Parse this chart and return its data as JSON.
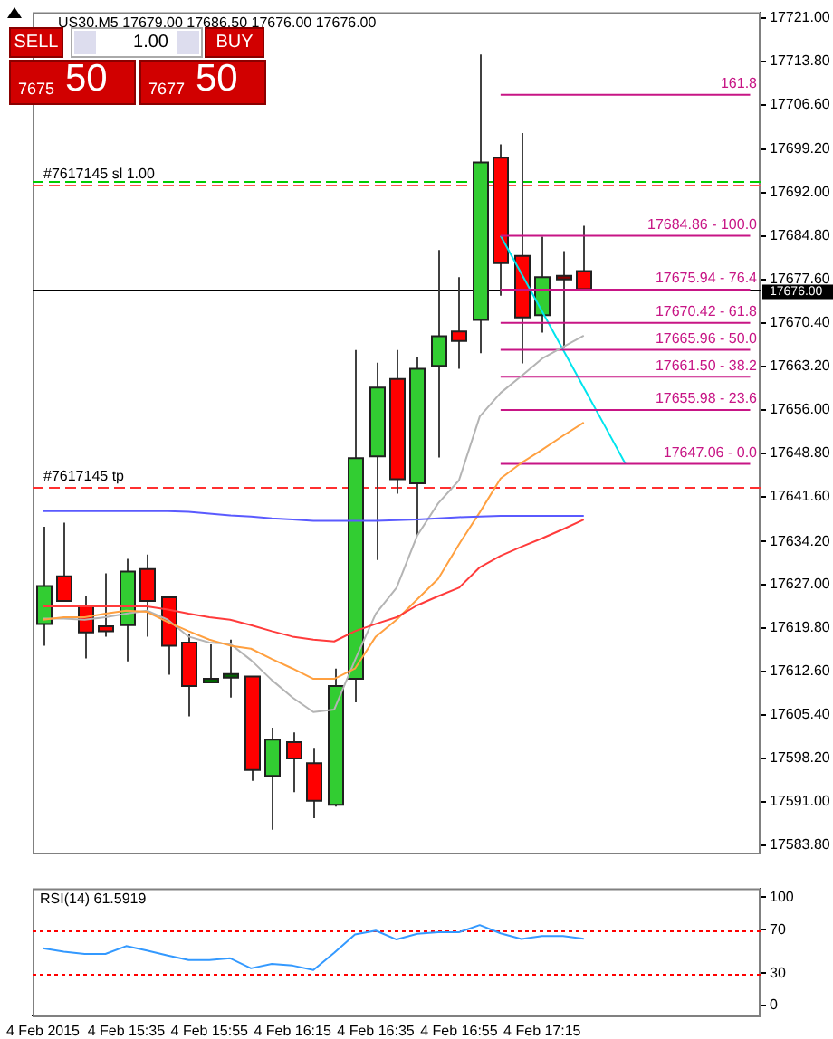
{
  "chart_data": [
    {
      "type": "candlestick",
      "title": "US30,M5 17679.00 17686.50 17676.00 17676.00",
      "categories": [
        null,
        null,
        null,
        null,
        null,
        null,
        null,
        null,
        null,
        null,
        null,
        null,
        null,
        null,
        null,
        null,
        null,
        null,
        null,
        null,
        null,
        null,
        null,
        null,
        null,
        null,
        null,
        null,
        null,
        null,
        null,
        null,
        null,
        null,
        null
      ],
      "ohlc": [
        [
          17620.5,
          17636.6,
          17616.9,
          17626.8
        ],
        [
          17628.4,
          17637.3,
          17624.3,
          17624.3
        ],
        [
          17623.4,
          17625.1,
          17614.8,
          17619.1
        ],
        [
          17620.1,
          17628.9,
          17618.4,
          17619.3
        ],
        [
          17620.3,
          17631.3,
          17614.3,
          17629.2
        ],
        [
          17629.6,
          17632.0,
          17618.4,
          17624.3
        ],
        [
          17624.9,
          17624.9,
          17612.1,
          17616.9
        ],
        [
          17617.4,
          17618.9,
          17605.2,
          17610.2
        ],
        [
          17611.0,
          17617.1,
          17611.0,
          17611.4
        ],
        [
          17611.7,
          17617.9,
          17608.3,
          17612.2
        ],
        [
          17611.8,
          17611.8,
          17594.5,
          17596.3
        ],
        [
          17595.3,
          17603.3,
          17586.4,
          17601.3
        ],
        [
          17600.9,
          17602.5,
          17592.6,
          17598.2
        ],
        [
          17597.4,
          17599.8,
          17588.3,
          17591.2
        ],
        [
          17590.5,
          17613.1,
          17590.2,
          17610.2
        ],
        [
          17611.4,
          17665.9,
          17607.5,
          17648.0
        ],
        [
          17648.3,
          17663.8,
          17631.1,
          17659.7
        ],
        [
          17661.1,
          17665.9,
          17642.1,
          17644.5
        ],
        [
          17643.8,
          17664.8,
          17635.2,
          17662.8
        ],
        [
          17663.3,
          17682.5,
          17648.1,
          17668.2
        ],
        [
          17669.0,
          17678.0,
          17662.8,
          17667.4
        ],
        [
          17670.9,
          17714.9,
          17665.4,
          17697.0
        ],
        [
          17697.8,
          17700.0,
          17674.9,
          17680.3
        ],
        [
          17681.5,
          17701.9,
          17663.7,
          17671.3
        ],
        [
          17671.7,
          17684.7,
          17668.8,
          17678.0
        ],
        [
          17678.2,
          17682.3,
          17666.4,
          17677.9
        ],
        [
          17679,
          17686.5,
          17676,
          17676
        ],
        null,
        null,
        null,
        null,
        null,
        null,
        null,
        null
      ],
      "colors": [
        "#32cd32",
        "#ff0000",
        "#ff0000",
        "#ff0000",
        "#32cd32",
        "#ff0000",
        "#ff0000",
        "#ff0000",
        "#006400",
        "#006400",
        "#ff0000",
        "#32cd32",
        "#ff0000",
        "#ff0000",
        "#32cd32",
        "#32cd32",
        "#32cd32",
        "#ff0000",
        "#32cd32",
        "#32cd32",
        "#ff0000",
        "#32cd32",
        "#ff0000",
        "#ff0000",
        "#32cd32",
        "#8b0000",
        "#ff0000",
        null,
        null,
        null,
        null,
        null,
        null,
        null,
        null
      ],
      "series": [
        {
          "type": "line",
          "color": "#5a5aff",
          "values": [
            17639.2,
            17639.2,
            17639.2,
            17639.2,
            17639.2,
            17639.2,
            17639.2,
            17639.1,
            17638.8,
            17638.5,
            17638.3,
            17638.0,
            17637.8,
            17637.6,
            17637.6,
            17637.6,
            17637.6,
            17637.7,
            17637.8,
            17638.0,
            17638.2,
            17638.3,
            17638.4,
            17638.4,
            17638.4,
            17638.4,
            17638.4,
            null,
            null,
            null,
            null,
            null,
            null,
            null,
            null
          ]
        },
        {
          "type": "line",
          "color": "#ff3b3b",
          "values": [
            17623.4,
            17623.4,
            17623.4,
            17623.4,
            17623.4,
            17623.4,
            17622.9,
            17622.2,
            17621.6,
            17621.2,
            17620.3,
            17619.3,
            17618.4,
            17617.9,
            17617.6,
            17619.3,
            17620.5,
            17621.6,
            17623.6,
            17625.1,
            17626.5,
            17629.9,
            17631.8,
            17633.3,
            17634.7,
            17636.2,
            17637.8,
            null,
            null,
            null,
            null,
            null,
            null,
            null,
            null
          ]
        },
        {
          "type": "line",
          "color": "#ffa040",
          "values": [
            17621.2,
            17621.6,
            17621.6,
            17622.2,
            17622.7,
            17622.5,
            17620.8,
            17619.3,
            17617.9,
            17616.9,
            17616.4,
            17614.7,
            17613.1,
            17611.4,
            17611.4,
            17613.1,
            17618.4,
            17621.2,
            17624.6,
            17628.0,
            17633.7,
            17639.0,
            17644.6,
            17647.2,
            17649.4,
            17651.7,
            17653.9,
            null,
            null,
            null,
            null,
            null,
            null,
            null,
            null
          ]
        },
        {
          "type": "line",
          "color": "#b4b4b4",
          "values": [
            17621.4,
            17621.4,
            17621.2,
            17621.6,
            17622.2,
            17622.7,
            17621.2,
            17618.4,
            17617.4,
            17617.2,
            17614.5,
            17611.2,
            17608.3,
            17605.9,
            17606.3,
            17614.5,
            17622.2,
            17626.5,
            17635.2,
            17640.5,
            17644.3,
            17654.9,
            17658.8,
            17661.6,
            17664.5,
            17666.4,
            17668.3,
            null,
            null,
            null,
            null,
            null,
            null,
            null,
            null
          ]
        },
        {
          "type": "line",
          "name": "161.8",
          "color": "#c71585",
          "values": [
            null,
            null,
            null,
            null,
            null,
            null,
            null,
            null,
            null,
            null,
            null,
            null,
            null,
            null,
            null,
            null,
            null,
            null,
            null,
            null,
            null,
            null,
            17708.22,
            17708.22,
            17708.22,
            17708.22,
            17708.22,
            17708.22,
            17708.22,
            17708.22,
            17708.22,
            17708.22,
            17708.22,
            17708.22,
            17708.22
          ]
        },
        {
          "type": "line",
          "name": "17684.86 - 100.0",
          "color": "#c71585",
          "values": [
            null,
            null,
            null,
            null,
            null,
            null,
            null,
            null,
            null,
            null,
            null,
            null,
            null,
            null,
            null,
            null,
            null,
            null,
            null,
            null,
            null,
            null,
            17684.86,
            17684.86,
            17684.86,
            17684.86,
            17684.86,
            17684.86,
            17684.86,
            17684.86,
            17684.86,
            17684.86,
            17684.86,
            17684.86,
            17684.86
          ]
        },
        {
          "type": "line",
          "name": "17675.94 - 76.4",
          "color": "#c71585",
          "values": [
            null,
            null,
            null,
            null,
            null,
            null,
            null,
            null,
            null,
            null,
            null,
            null,
            null,
            null,
            null,
            null,
            null,
            null,
            null,
            null,
            null,
            null,
            17675.94,
            17675.94,
            17675.94,
            17675.94,
            17675.94,
            17675.94,
            17675.94,
            17675.94,
            17675.94,
            17675.94,
            17675.94,
            17675.94,
            17675.94
          ]
        },
        {
          "type": "line",
          "name": "17670.42 - 61.8",
          "color": "#c71585",
          "values": [
            null,
            null,
            null,
            null,
            null,
            null,
            null,
            null,
            null,
            null,
            null,
            null,
            null,
            null,
            null,
            null,
            null,
            null,
            null,
            null,
            null,
            null,
            17670.42,
            17670.42,
            17670.42,
            17670.42,
            17670.42,
            17670.42,
            17670.42,
            17670.42,
            17670.42,
            17670.42,
            17670.42,
            17670.42,
            17670.42
          ]
        },
        {
          "type": "line",
          "name": "17665.96 - 50.0",
          "color": "#c71585",
          "values": [
            null,
            null,
            null,
            null,
            null,
            null,
            null,
            null,
            null,
            null,
            null,
            null,
            null,
            null,
            null,
            null,
            null,
            null,
            null,
            null,
            null,
            null,
            17665.96,
            17665.96,
            17665.96,
            17665.96,
            17665.96,
            17665.96,
            17665.96,
            17665.96,
            17665.96,
            17665.96,
            17665.96,
            17665.96,
            17665.96
          ]
        },
        {
          "type": "line",
          "name": "17661.50 - 38.2",
          "color": "#c71585",
          "values": [
            null,
            null,
            null,
            null,
            null,
            null,
            null,
            null,
            null,
            null,
            null,
            null,
            null,
            null,
            null,
            null,
            null,
            null,
            null,
            null,
            null,
            null,
            17661.5,
            17661.5,
            17661.5,
            17661.5,
            17661.5,
            17661.5,
            17661.5,
            17661.5,
            17661.5,
            17661.5,
            17661.5,
            17661.5,
            17661.5
          ]
        },
        {
          "type": "line",
          "name": "17655.98 - 23.6",
          "color": "#c71585",
          "values": [
            null,
            null,
            null,
            null,
            null,
            null,
            null,
            null,
            null,
            null,
            null,
            null,
            null,
            null,
            null,
            null,
            null,
            null,
            null,
            null,
            null,
            null,
            17655.98,
            17655.98,
            17655.98,
            17655.98,
            17655.98,
            17655.98,
            17655.98,
            17655.98,
            17655.98,
            17655.98,
            17655.98,
            17655.98,
            17655.98
          ]
        },
        {
          "type": "line",
          "name": "17647.06 - 0.0",
          "color": "#c71585",
          "values": [
            null,
            null,
            null,
            null,
            null,
            null,
            null,
            null,
            null,
            null,
            null,
            null,
            null,
            null,
            null,
            null,
            null,
            null,
            null,
            null,
            null,
            null,
            17647.06,
            17647.06,
            17647.06,
            17647.06,
            17647.06,
            17647.06,
            17647.06,
            17647.06,
            17647.06,
            17647.06,
            17647.06,
            17647.06,
            17647.06
          ]
        },
        {
          "type": "line",
          "color": "#00e5ee",
          "values": [
            null,
            null,
            null,
            null,
            null,
            null,
            null,
            null,
            null,
            null,
            null,
            null,
            null,
            null,
            null,
            null,
            null,
            null,
            null,
            null,
            null,
            null,
            17684.86,
            17678.6,
            17672.3,
            17666.0,
            17659.7,
            17653.4,
            17647.06,
            null,
            null,
            null,
            null,
            null,
            null
          ]
        }
      ],
      "ref_lines": [
        {
          "axis": "y",
          "value": 17694.0,
          "color": "#00cc00",
          "line_style": "dashed"
        },
        {
          "axis": "y",
          "value": 17693.4,
          "label": "#7617145 sl 1.00",
          "color": "#ff5050",
          "line_style": "dashed"
        },
        {
          "axis": "y",
          "value": 17643.3,
          "label": "#7617145 tp",
          "color": "#ff3030",
          "line_style": "dashed"
        },
        {
          "axis": "y",
          "value": 17676.0,
          "label": "17676.00",
          "color": "#000000",
          "line_style": "solid"
        }
      ],
      "ylim": [
        17582.6,
        17721.9
      ],
      "yticks": [
        {
          "value": 17583.8,
          "label": "17583.80"
        },
        {
          "value": 17591,
          "label": "17591.00"
        },
        {
          "value": 17598.2,
          "label": "17598.20"
        },
        {
          "value": 17605.4,
          "label": "17605.40"
        },
        {
          "value": 17612.6,
          "label": "17612.60"
        },
        {
          "value": 17619.8,
          "label": "17619.80"
        },
        {
          "value": 17627,
          "label": "17627.00"
        },
        {
          "value": 17634.2,
          "label": "17634.20"
        },
        {
          "value": 17641.6,
          "label": "17641.60"
        },
        {
          "value": 17648.8,
          "label": "17648.80"
        },
        {
          "value": 17656,
          "label": "17656.00"
        },
        {
          "value": 17663.2,
          "label": "17663.20"
        },
        {
          "value": 17670.4,
          "label": "17670.40"
        },
        {
          "value": 17677.6,
          "label": "17677.60"
        },
        {
          "value": 17684.8,
          "label": "17684.80"
        },
        {
          "value": 17692,
          "label": "17692.00"
        },
        {
          "value": 17699.2,
          "label": "17699.20"
        },
        {
          "value": 17706.6,
          "label": "17706.60"
        },
        {
          "value": 17713.8,
          "label": "17713.80"
        },
        {
          "value": 17721,
          "label": "17721.00"
        }
      ],
      "tick_labels": "y",
      "annotations": [
        "SELL",
        "1.00",
        "BUY",
        "7675",
        "50",
        "7677",
        "50"
      ]
    },
    {
      "type": "line",
      "title": "RSI(14) 61.5919",
      "categories": [
        "4 Feb 2015",
        null,
        null,
        null,
        "4 Feb 15:35",
        null,
        null,
        null,
        "4 Feb 15:55",
        null,
        null,
        null,
        "4 Feb 16:15",
        null,
        null,
        null,
        "4 Feb 16:35",
        null,
        null,
        null,
        "4 Feb 16:55",
        null,
        null,
        null,
        "4 Feb 17:15",
        null,
        null,
        null,
        null,
        null,
        null,
        null,
        null,
        null,
        null
      ],
      "series": [
        {
          "color": "#3399ff",
          "values": [
            52.8,
            49.7,
            47.7,
            47.7,
            54.9,
            50.8,
            46.2,
            42.1,
            42.1,
            43.6,
            34.4,
            38.5,
            36.9,
            32.8,
            48.7,
            65.6,
            69.2,
            61.0,
            66.2,
            67.7,
            67.7,
            74.3,
            66.7,
            61.5,
            64.1,
            64.1,
            61.5919,
            null,
            null,
            null,
            null,
            null,
            null,
            null,
            null
          ]
        }
      ],
      "ref_lines": [
        {
          "axis": "y",
          "value": 70,
          "color": "#ff0000",
          "line_style": "dotted"
        },
        {
          "axis": "y",
          "value": 30,
          "color": "#ff0000",
          "line_style": "dotted"
        }
      ],
      "ylim": [
        -9.2,
        108.2
      ],
      "yticks": [
        0,
        30,
        70,
        100
      ]
    }
  ]
}
